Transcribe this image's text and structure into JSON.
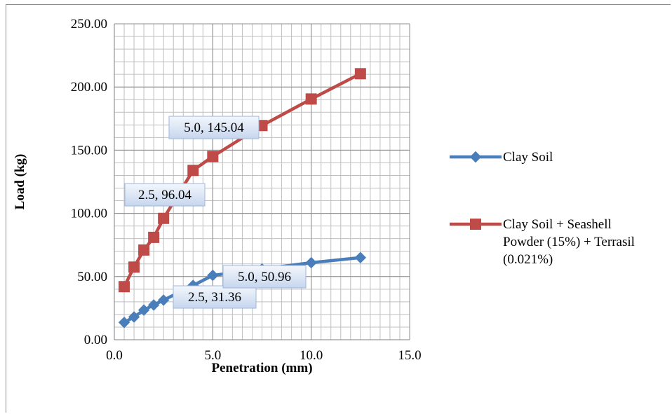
{
  "chart_data": {
    "type": "line",
    "title": "",
    "xlabel": "Penetration (mm)",
    "ylabel": "Load (kg)",
    "xlim": [
      0,
      15
    ],
    "ylim": [
      0,
      250
    ],
    "x_ticks": [
      "0.0",
      "5.0",
      "10.0",
      "15.0"
    ],
    "y_ticks": [
      "0.00",
      "50.00",
      "100.00",
      "150.00",
      "200.00",
      "250.00"
    ],
    "grid": true,
    "legend_position": "right",
    "series": [
      {
        "name": "Clay Soil",
        "color": "#4a7ebb",
        "marker": "diamond",
        "x": [
          0.5,
          1.0,
          1.5,
          2.0,
          2.5,
          4.0,
          5.0,
          7.5,
          10.0,
          12.5
        ],
        "y": [
          13.7,
          18.0,
          23.5,
          27.5,
          31.36,
          43.0,
          50.96,
          56.0,
          61.0,
          65.0
        ],
        "labels": [
          {
            "index": 4,
            "text": "2.5, 31.36"
          },
          {
            "index": 6,
            "text": "5.0, 50.96"
          }
        ]
      },
      {
        "name": "Clay Soil + Seashell Powder (15%) + Terrasil (0.021%)",
        "legend_lines": [
          "Clay Soil + Seashell",
          "Powder (15%) + Terrasil",
          "(0.021%)"
        ],
        "color": "#be4b48",
        "marker": "square",
        "x": [
          0.5,
          1.0,
          1.5,
          2.0,
          2.5,
          4.0,
          5.0,
          7.5,
          10.0,
          12.5
        ],
        "y": [
          42.0,
          57.5,
          71.0,
          81.0,
          96.04,
          134.0,
          145.04,
          169.5,
          190.5,
          210.5
        ],
        "labels": [
          {
            "index": 4,
            "text": "2.5, 96.04"
          },
          {
            "index": 6,
            "text": "5.0, 145.04"
          }
        ]
      }
    ]
  }
}
